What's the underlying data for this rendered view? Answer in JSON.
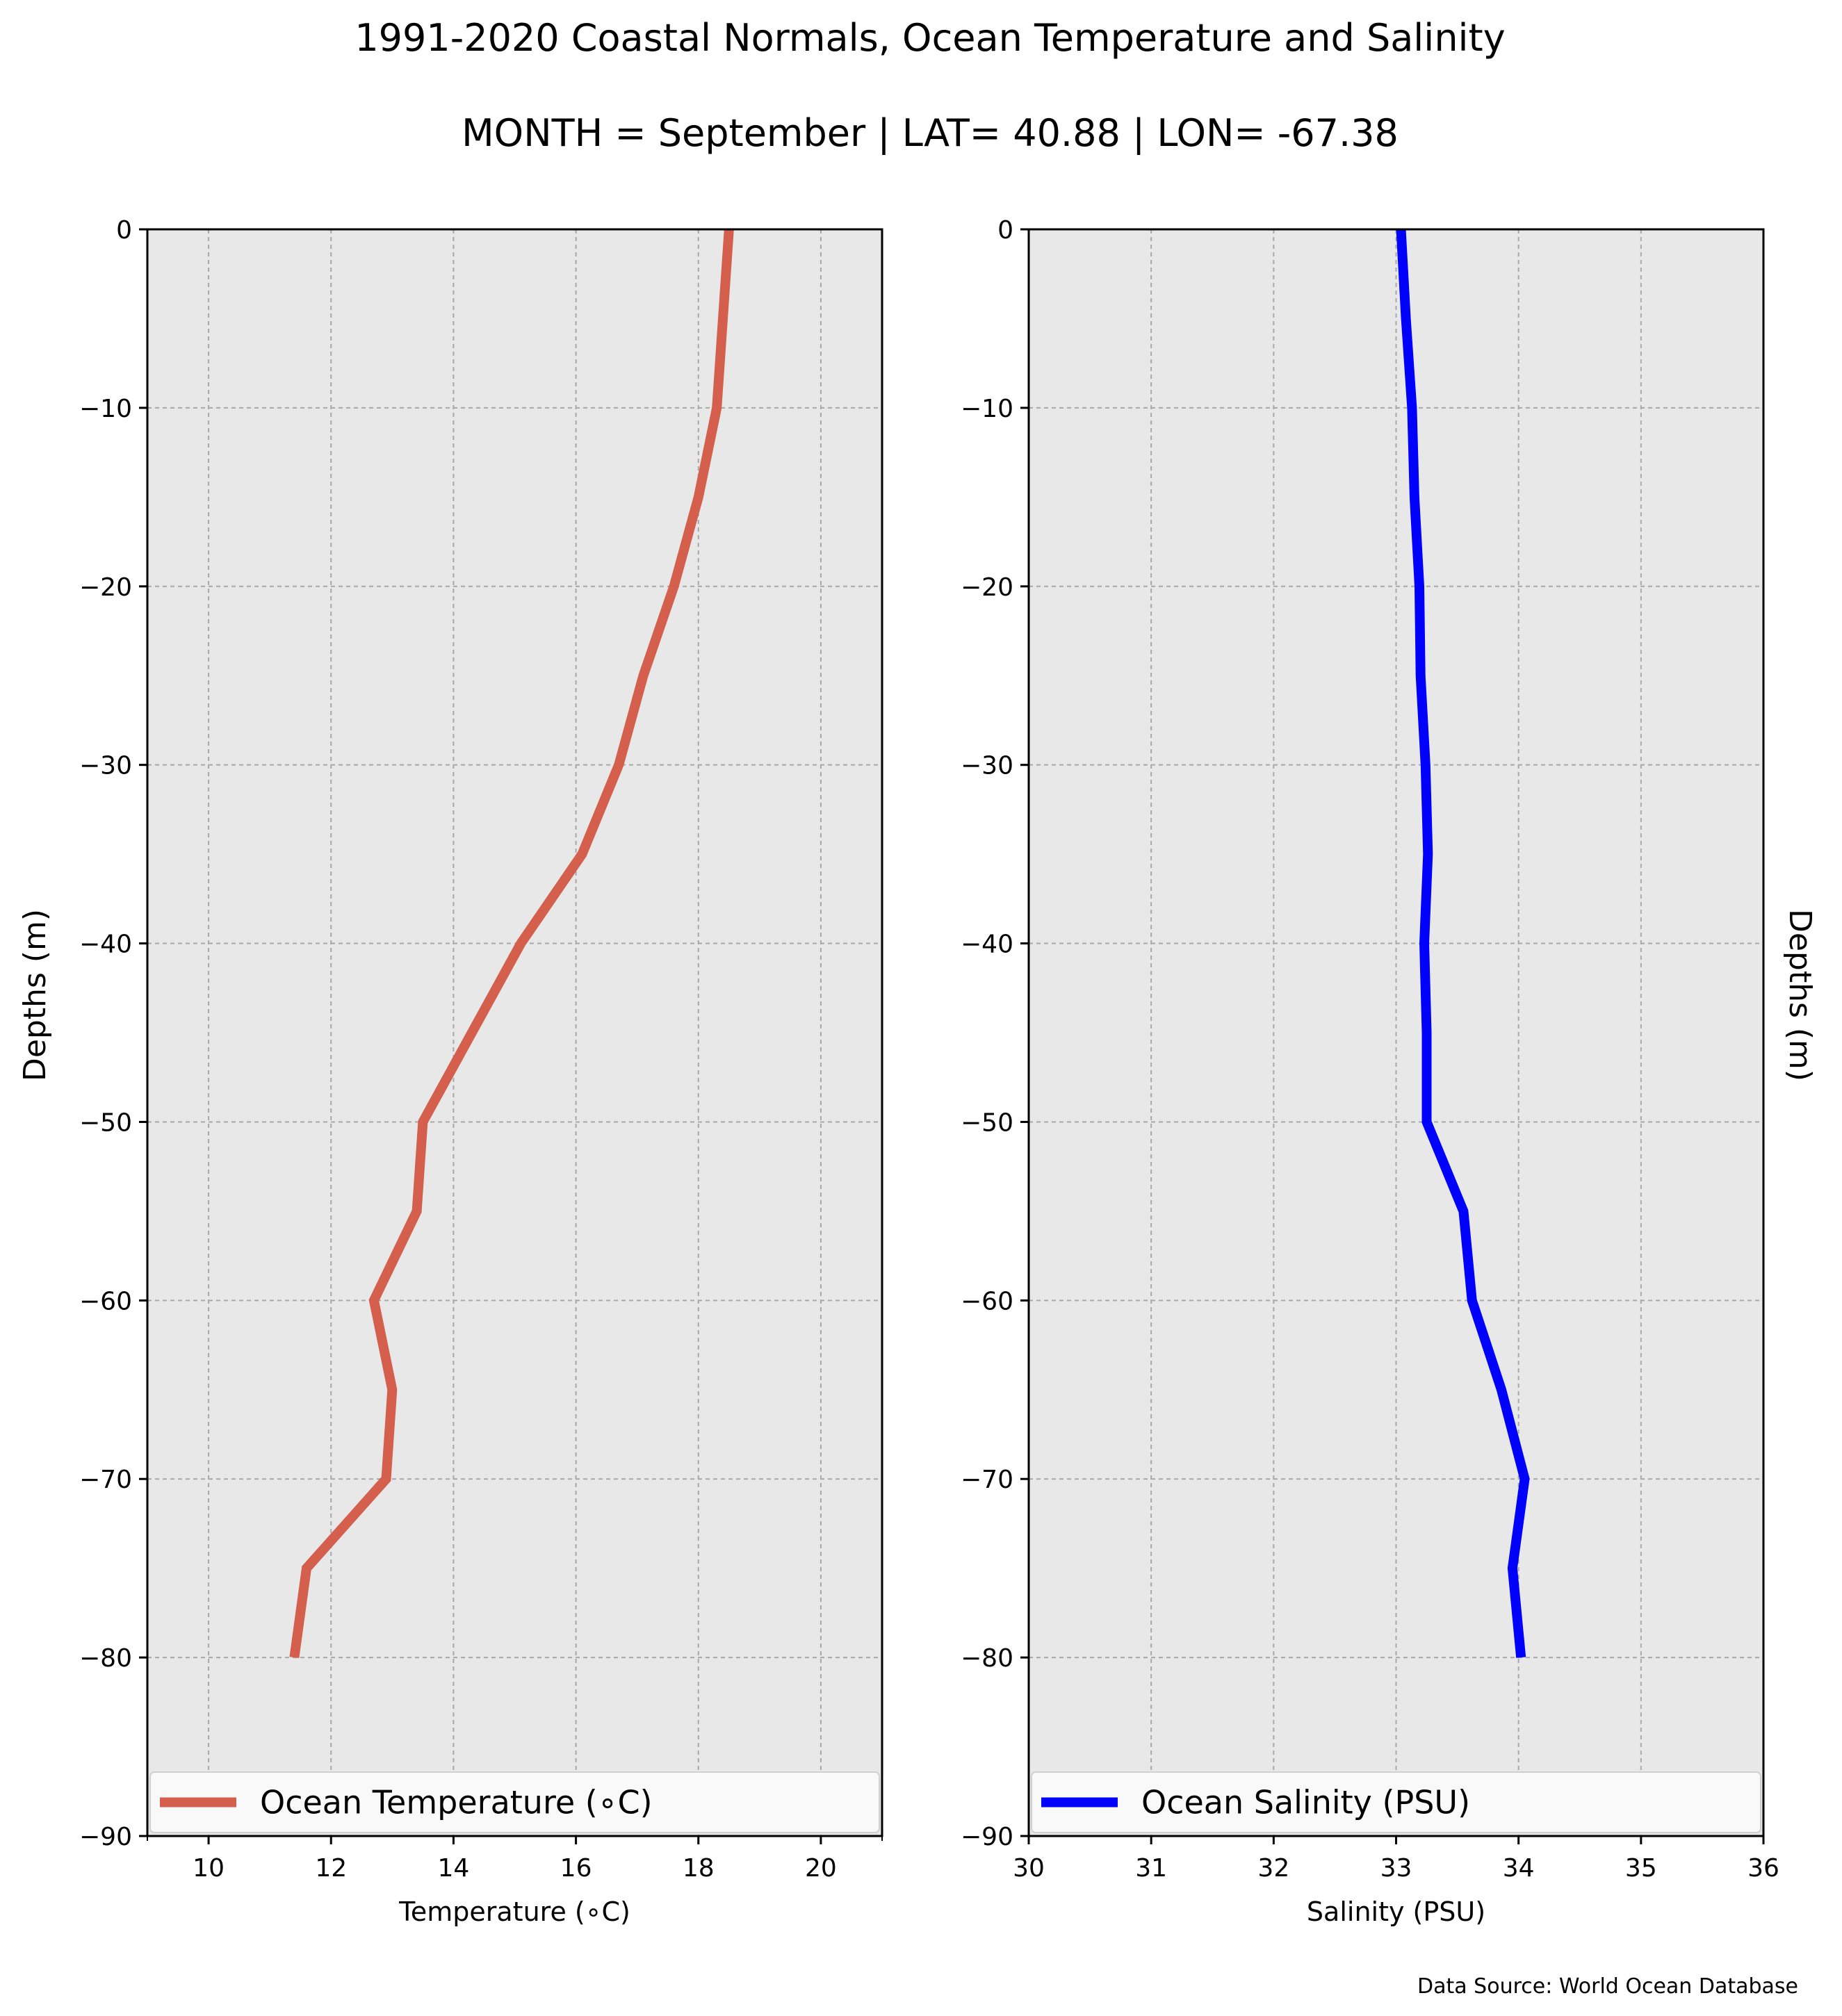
{
  "figure": {
    "title": "1991-2020 Coastal Normals, Ocean Temperature and Salinity",
    "subtitle": "MONTH = September | LAT= 40.88 | LON= -67.38",
    "source": "Data Source: World Ocean Database",
    "background_color": "#e8e8e8",
    "grid_color": "#a8a8a8"
  },
  "chart_data": [
    {
      "type": "line",
      "xlabel": "Temperature ($^\\circ$C)",
      "xlabel_display": "Temperature (∘C)",
      "ylabel": "Depths (m)",
      "xlim": [
        9,
        21
      ],
      "ylim": [
        -90,
        0
      ],
      "xticks": [
        10,
        12,
        14,
        16,
        18,
        20
      ],
      "xtick_labels": [
        "10",
        "12",
        "14",
        "16",
        "18",
        "20"
      ],
      "yticks": [
        0,
        -10,
        -20,
        -30,
        -40,
        -50,
        -60,
        -70,
        -80,
        -90
      ],
      "ytick_labels": [
        "0",
        "−10",
        "−20",
        "−30",
        "−40",
        "−50",
        "−60",
        "−70",
        "−80",
        "−90"
      ],
      "grid": true,
      "legend_location": "bottom",
      "series": [
        {
          "name": "Ocean Temperature (∘C)",
          "color": "#d35f4c",
          "x": [
            18.5,
            18.4,
            18.3,
            18.0,
            17.6,
            17.1,
            16.7,
            16.1,
            15.1,
            14.3,
            13.5,
            13.4,
            12.7,
            13.0,
            12.9,
            11.6,
            11.4
          ],
          "y": [
            0,
            -5,
            -10,
            -15,
            -20,
            -25,
            -30,
            -35,
            -40,
            -45,
            -50,
            -55,
            -60,
            -65,
            -70,
            -75,
            -80
          ]
        }
      ]
    },
    {
      "type": "line",
      "xlabel": "Salinity (PSU)",
      "ylabel": "Depths (m)",
      "xlim": [
        30,
        36
      ],
      "ylim": [
        -90,
        0
      ],
      "xticks": [
        30,
        31,
        32,
        33,
        34,
        35,
        36
      ],
      "xtick_labels": [
        "30",
        "31",
        "32",
        "33",
        "34",
        "35",
        "36"
      ],
      "yticks": [
        0,
        -10,
        -20,
        -30,
        -40,
        -50,
        -60,
        -70,
        -80,
        -90
      ],
      "ytick_labels": [
        "0",
        "−10",
        "−20",
        "−30",
        "−40",
        "−50",
        "−60",
        "−70",
        "−80",
        "−90"
      ],
      "grid": true,
      "legend_location": "bottom",
      "series": [
        {
          "name": "Ocean Salinity (PSU)",
          "color": "#0000ff",
          "x": [
            33.04,
            33.08,
            33.13,
            33.15,
            33.19,
            33.2,
            33.24,
            33.26,
            33.23,
            33.25,
            33.25,
            33.55,
            33.62,
            33.86,
            34.05,
            33.95,
            34.02
          ],
          "y": [
            0,
            -5,
            -10,
            -15,
            -20,
            -25,
            -30,
            -35,
            -40,
            -45,
            -50,
            -55,
            -60,
            -65,
            -70,
            -75,
            -80
          ]
        }
      ]
    }
  ]
}
